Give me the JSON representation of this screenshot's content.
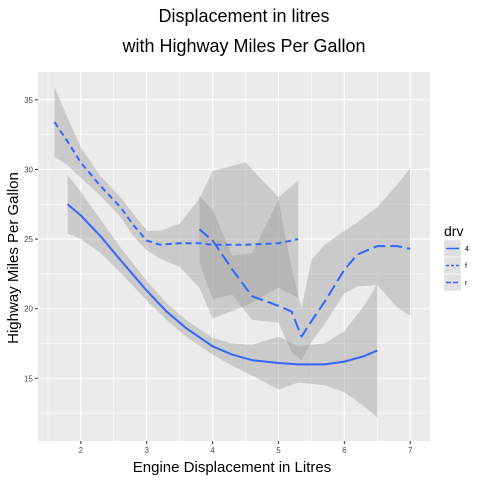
{
  "chart_data": {
    "type": "line",
    "title": [
      "Displacement in litres",
      "with Highway Miles Per Gallon"
    ],
    "xlabel": "Engine Displacement in Litres",
    "ylabel": "Highway Miles Per Gallon",
    "xlim": [
      1.35,
      7.3
    ],
    "ylim": [
      10.5,
      37
    ],
    "x_ticks": [
      2,
      3,
      4,
      5,
      6,
      7
    ],
    "y_ticks": [
      15,
      20,
      25,
      30,
      35
    ],
    "grid": true,
    "panel_background": "#ebebeb",
    "legend": {
      "title": "drv",
      "position": "right",
      "entries": [
        "4",
        "f",
        "r"
      ]
    },
    "line_color": "#3366ff",
    "band_color": "#999999",
    "series": [
      {
        "name": "4",
        "linestyle": "solid",
        "x": [
          1.8,
          2.0,
          2.3,
          2.6,
          3.0,
          3.3,
          3.6,
          4.0,
          4.3,
          4.6,
          5.0,
          5.3,
          5.7,
          6.0,
          6.3,
          6.5
        ],
        "y": [
          27.5,
          26.7,
          25.2,
          23.5,
          21.3,
          19.8,
          18.6,
          17.3,
          16.7,
          16.3,
          16.1,
          16.0,
          16.0,
          16.2,
          16.6,
          17.0
        ],
        "lower": [
          25.4,
          25.0,
          24.0,
          22.6,
          20.6,
          19.2,
          18.0,
          16.7,
          15.9,
          15.2,
          14.2,
          14.7,
          14.5,
          14.0,
          13.0,
          12.2
        ],
        "upper": [
          29.6,
          28.4,
          26.4,
          24.4,
          22.0,
          20.4,
          19.2,
          17.9,
          17.5,
          17.4,
          18.0,
          17.3,
          17.5,
          18.4,
          20.2,
          21.8
        ]
      },
      {
        "name": "f",
        "linestyle": "dashed",
        "x": [
          1.6,
          1.8,
          2.0,
          2.3,
          2.6,
          2.8,
          3.0,
          3.2,
          3.5,
          3.8,
          4.0,
          4.5,
          5.0,
          5.3
        ],
        "y": [
          33.4,
          32.0,
          30.5,
          28.8,
          27.3,
          26.0,
          24.9,
          24.6,
          24.7,
          24.7,
          24.6,
          24.6,
          24.7,
          25.0
        ],
        "lower": [
          30.9,
          30.3,
          29.4,
          28.1,
          26.6,
          25.2,
          24.2,
          23.6,
          23.0,
          21.5,
          19.3,
          20.2,
          21.5,
          20.8
        ],
        "upper": [
          35.9,
          33.7,
          31.6,
          29.5,
          28.0,
          26.8,
          25.6,
          25.6,
          26.1,
          27.9,
          29.9,
          30.5,
          28.0,
          29.2
        ]
      },
      {
        "name": "r",
        "linestyle": "longdash",
        "x": [
          3.8,
          4.0,
          4.3,
          4.6,
          5.0,
          5.2,
          5.35,
          5.5,
          5.7,
          6.0,
          6.2,
          6.5,
          6.8,
          7.0
        ],
        "y": [
          25.7,
          24.9,
          22.8,
          20.9,
          20.2,
          19.8,
          18.0,
          19.1,
          20.5,
          22.8,
          23.9,
          24.5,
          24.5,
          24.3
        ],
        "lower": [
          23.3,
          20.7,
          21.0,
          19.2,
          19.0,
          16.9,
          16.3,
          17.6,
          18.9,
          21.1,
          21.6,
          21.7,
          20.1,
          19.5
        ],
        "upper": [
          28.1,
          27.1,
          23.8,
          24.0,
          27.8,
          22.9,
          20.0,
          23.5,
          24.6,
          25.6,
          26.2,
          27.3,
          28.9,
          30.1
        ]
      }
    ]
  }
}
